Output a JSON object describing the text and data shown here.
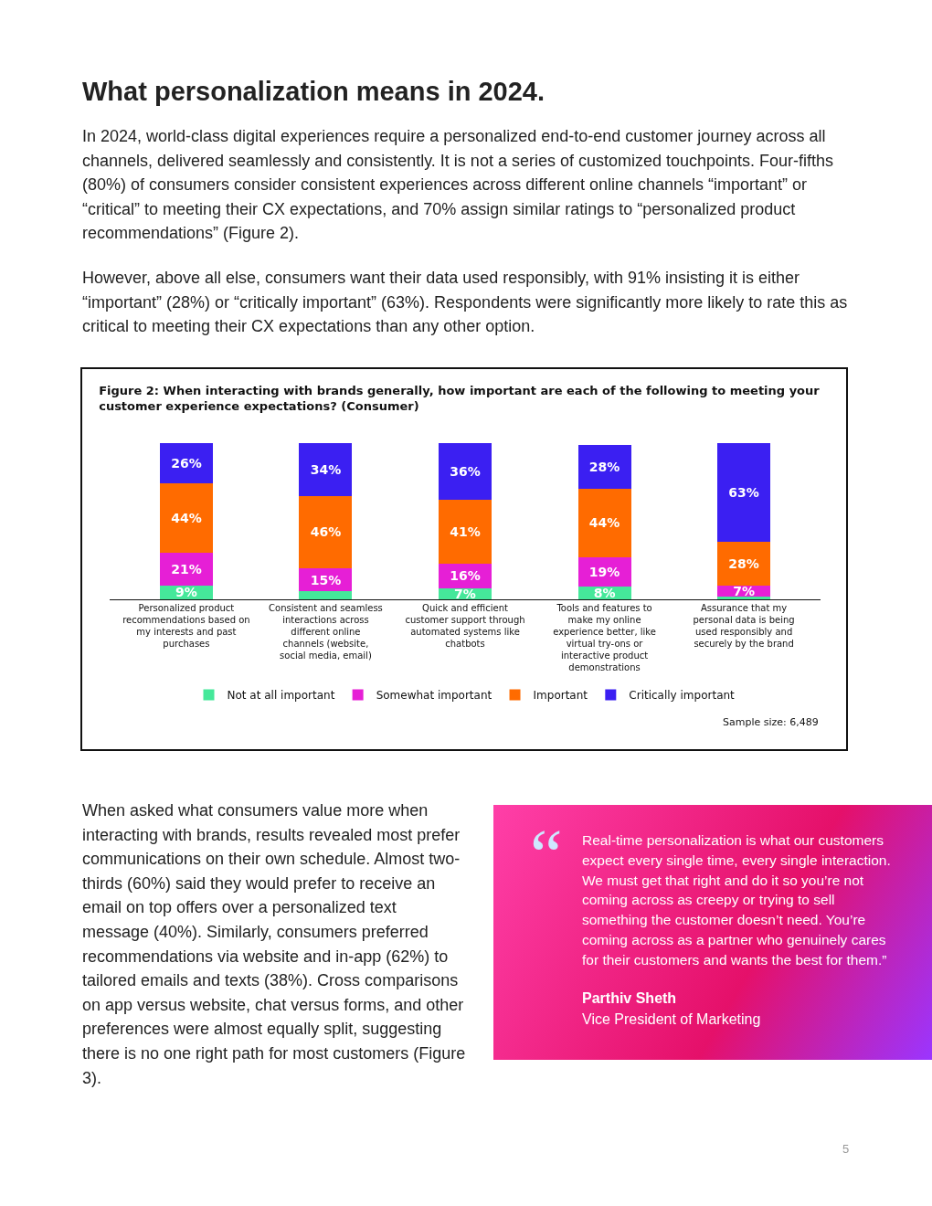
{
  "chart_data": {
    "type": "bar",
    "title": "Figure 2: When interacting with brands generally, how important are each of the following to meeting your customer experience expectations? (Consumer)",
    "categories": [
      "Personalized product recommendations based on my interests and past purchases",
      "Consistent and seamless interactions across different online channels (website, social media, email)",
      "Quick and efficient customer support through automated systems like chatbots",
      "Tools and features to make my online experience better, like virtual try-ons or interactive product demonstrations",
      "Assurance that my personal data is being used responsibly and securely by the brand"
    ],
    "stacked": true,
    "grid": false,
    "legend": "bottom",
    "series": [
      {
        "name": "Not at all important",
        "color": "#45e89a",
        "values": [
          9,
          5,
          7,
          8,
          2
        ],
        "value_labels": [
          "9%",
          null,
          "7%",
          "8%",
          null
        ]
      },
      {
        "name": "Somewhat important",
        "color": "#e61fd6",
        "values": [
          21,
          15,
          16,
          19,
          7
        ],
        "value_labels": [
          "21%",
          "15%",
          "16%",
          "19%",
          "7%"
        ]
      },
      {
        "name": "Important",
        "color": "#ff6b00",
        "values": [
          44,
          46,
          41,
          44,
          28
        ],
        "value_labels": [
          "44%",
          "46%",
          "41%",
          "44%",
          "28%"
        ]
      },
      {
        "name": "Critically important",
        "color": "#3b1ff2",
        "values": [
          26,
          34,
          36,
          28,
          63
        ],
        "value_labels": [
          "26%",
          "34%",
          "36%",
          "28%",
          "63%"
        ]
      }
    ],
    "annotations": [
      "What personalization means in 2024.",
      "In 2024, world-class digital experiences require a personalized end-to-end customer journey across all channels, delivered seamlessly and consistently. It is not a series of customized touchpoints. Four-fifths (80%) of consumers consider consistent experiences across different online channels “important” or “critical” to meeting their CX expectations, and 70% assign similar ratings to “personalized product recommendations” (Figure 2).",
      "However, above all else, consumers want their data used responsibly, with 91% insisting it is either “important” (28%) or “critically important” (63%). Respondents were significantly more likely to rate this as critical to meeting their CX expectations than any other option.",
      "Sample size: 6,489",
      "When asked what consumers value more when interacting with brands, results revealed most prefer communications on their own schedule. Almost two-thirds (60%) said they would prefer to receive an email on top offers over a personalized text message (40%). Similarly, consumers preferred recommendations via website and in-app (62%) to tailored emails and texts (38%). Cross comparisons on app versus website, chat versus forms, and other preferences were almost equally split, suggesting there is no one right path for most customers (Figure 3).",
      "“",
      "Real-time personalization is what our customers expect every single time, every single interaction. We must get that right and do it so you’re not coming across as creepy or trying to sell something the customer doesn’t need. You’re coming across as a partner who genuinely cares for their customers and wants the best for them.”",
      "Parthiv Sheth",
      "Vice President of Marketing",
      "5"
    ]
  }
}
